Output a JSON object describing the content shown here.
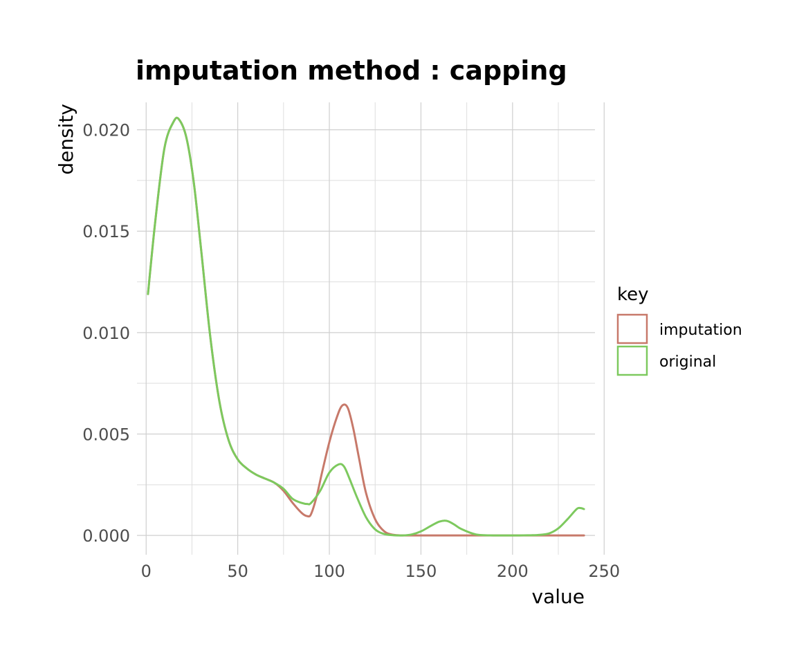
{
  "chart_data": {
    "type": "line",
    "title": "imputation method : capping",
    "xlabel": "value",
    "ylabel": "density",
    "xlim": [
      -5,
      245
    ],
    "ylim": [
      -0.00095,
      0.02135
    ],
    "x_ticks": [
      0,
      50,
      100,
      150,
      200,
      250
    ],
    "x_tick_labels": [
      "0",
      "50",
      "100",
      "150",
      "200",
      "250"
    ],
    "y_ticks": [
      0.0,
      0.005,
      0.01,
      0.015,
      0.02
    ],
    "y_tick_labels": [
      "0.000",
      "0.005",
      "0.010",
      "0.015",
      "0.020"
    ],
    "grid": true,
    "legend": {
      "title": "key",
      "position": "right"
    },
    "series": [
      {
        "name": "imputation",
        "color": "#c7796a",
        "x": [
          1,
          5,
          10,
          15,
          18,
          22,
          26,
          30,
          35,
          40,
          45,
          50,
          55,
          60,
          65,
          70,
          75,
          80,
          85,
          88,
          90,
          93,
          96,
          100,
          104,
          107,
          110,
          113,
          116,
          120,
          125,
          130,
          135,
          140,
          145,
          150,
          160,
          170,
          180,
          190,
          200,
          210,
          220,
          230,
          239
        ],
        "y": [
          0.0119,
          0.0155,
          0.0191,
          0.0204,
          0.0205,
          0.0196,
          0.0174,
          0.0141,
          0.0098,
          0.0066,
          0.0047,
          0.00375,
          0.0033,
          0.003,
          0.0028,
          0.0026,
          0.0022,
          0.0016,
          0.0011,
          0.00095,
          0.00105,
          0.0019,
          0.0031,
          0.0046,
          0.0058,
          0.0064,
          0.0063,
          0.0053,
          0.0039,
          0.0021,
          0.0008,
          0.0002,
          3e-05,
          0.0,
          0.0,
          0.0,
          0.0,
          0.0,
          0.0,
          0.0,
          0.0,
          0.0,
          0.0,
          0.0,
          0.0
        ]
      },
      {
        "name": "original",
        "color": "#7dc95e",
        "x": [
          1,
          5,
          10,
          15,
          18,
          22,
          26,
          30,
          35,
          40,
          45,
          50,
          55,
          60,
          65,
          70,
          75,
          80,
          85,
          88,
          90,
          95,
          100,
          105,
          108,
          111,
          115,
          120,
          125,
          130,
          135,
          140,
          145,
          150,
          155,
          160,
          164,
          168,
          172,
          180,
          190,
          200,
          210,
          215,
          220,
          225,
          230,
          235,
          237,
          239
        ],
        "y": [
          0.0119,
          0.0155,
          0.0191,
          0.0204,
          0.0205,
          0.0196,
          0.0174,
          0.0141,
          0.0098,
          0.0066,
          0.0047,
          0.00375,
          0.0033,
          0.003,
          0.0028,
          0.0026,
          0.0023,
          0.0018,
          0.0016,
          0.00155,
          0.0016,
          0.0022,
          0.0031,
          0.0035,
          0.0034,
          0.0028,
          0.0019,
          0.0009,
          0.0003,
          7e-05,
          1e-05,
          0.0,
          5e-05,
          0.0002,
          0.00045,
          0.00068,
          0.00072,
          0.00055,
          0.00032,
          5e-05,
          0.0,
          0.0,
          1e-05,
          3e-05,
          0.0001,
          0.00035,
          0.0008,
          0.0013,
          0.00135,
          0.0013
        ]
      }
    ]
  }
}
